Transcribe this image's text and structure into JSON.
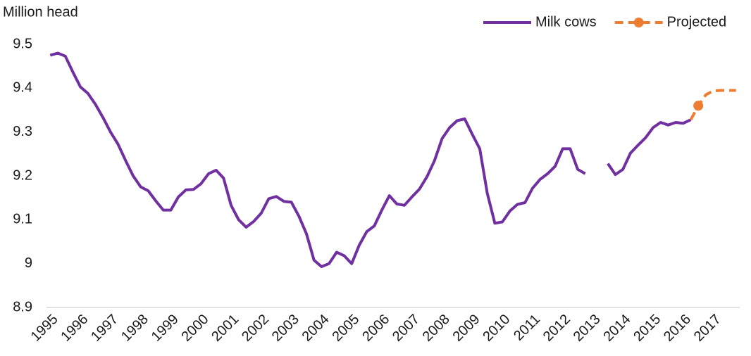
{
  "chart_data": {
    "type": "line",
    "y_axis_label": "Million head",
    "categories": [
      "1995",
      null,
      null,
      null,
      "1996",
      null,
      null,
      null,
      "1997",
      null,
      null,
      null,
      "1998",
      null,
      null,
      null,
      "1999",
      null,
      null,
      null,
      "2000",
      null,
      null,
      null,
      "2001",
      null,
      null,
      null,
      "2002",
      null,
      null,
      null,
      "2003",
      null,
      null,
      null,
      "2004",
      null,
      null,
      null,
      "2005",
      null,
      null,
      null,
      "2006",
      null,
      null,
      null,
      "2007",
      null,
      null,
      null,
      "2008",
      null,
      null,
      null,
      "2009",
      null,
      null,
      null,
      "2010",
      null,
      null,
      null,
      "2011",
      null,
      null,
      null,
      "2012",
      null,
      null,
      null,
      "2013",
      null,
      null,
      null,
      "2014",
      null,
      null,
      null,
      "2015",
      null,
      null,
      null,
      "2016",
      null,
      null,
      null,
      "2017",
      null,
      null,
      null
    ],
    "series": [
      {
        "name": "Milk cows",
        "color": "#7030a0",
        "dashed": false,
        "values": [
          9.475,
          9.48,
          9.473,
          9.437,
          9.403,
          9.388,
          9.363,
          9.333,
          9.3,
          9.272,
          9.235,
          9.2,
          9.175,
          9.166,
          9.143,
          9.122,
          9.122,
          9.152,
          9.168,
          9.169,
          9.182,
          9.205,
          9.213,
          9.195,
          9.133,
          9.1,
          9.083,
          9.096,
          9.115,
          9.148,
          9.153,
          9.142,
          9.14,
          9.108,
          9.068,
          9.008,
          8.993,
          9.0,
          9.026,
          9.018,
          9.0,
          9.042,
          9.073,
          9.086,
          9.122,
          9.155,
          9.136,
          9.133,
          9.152,
          9.17,
          9.198,
          9.235,
          9.285,
          9.31,
          9.326,
          9.33,
          9.295,
          9.262,
          9.16,
          9.092,
          9.095,
          9.12,
          9.135,
          9.139,
          9.172,
          9.192,
          9.205,
          9.222,
          9.262,
          9.262,
          9.215,
          9.205,
          null,
          null,
          9.228,
          9.203,
          9.215,
          9.252,
          9.27,
          9.287,
          9.31,
          9.322,
          9.316,
          9.322,
          9.32,
          9.328,
          null,
          null,
          null,
          null,
          null,
          null
        ]
      },
      {
        "name": "Projected",
        "color": "#ed7d31",
        "dashed": true,
        "markers": [
          86
        ],
        "values": [
          null,
          null,
          null,
          null,
          null,
          null,
          null,
          null,
          null,
          null,
          null,
          null,
          null,
          null,
          null,
          null,
          null,
          null,
          null,
          null,
          null,
          null,
          null,
          null,
          null,
          null,
          null,
          null,
          null,
          null,
          null,
          null,
          null,
          null,
          null,
          null,
          null,
          null,
          null,
          null,
          null,
          null,
          null,
          null,
          null,
          null,
          null,
          null,
          null,
          null,
          null,
          null,
          null,
          null,
          null,
          null,
          null,
          null,
          null,
          null,
          null,
          null,
          null,
          null,
          null,
          null,
          null,
          null,
          null,
          null,
          null,
          null,
          null,
          null,
          null,
          null,
          null,
          null,
          null,
          null,
          null,
          null,
          null,
          null,
          null,
          9.328,
          9.36,
          9.385,
          9.394,
          9.395,
          9.395,
          9.395
        ]
      }
    ],
    "ylim": [
      8.9,
      9.5
    ],
    "yticks": [
      8.9,
      9,
      9.1,
      9.2,
      9.3,
      9.4,
      9.5
    ],
    "grid": false,
    "legend": "top-right"
  }
}
